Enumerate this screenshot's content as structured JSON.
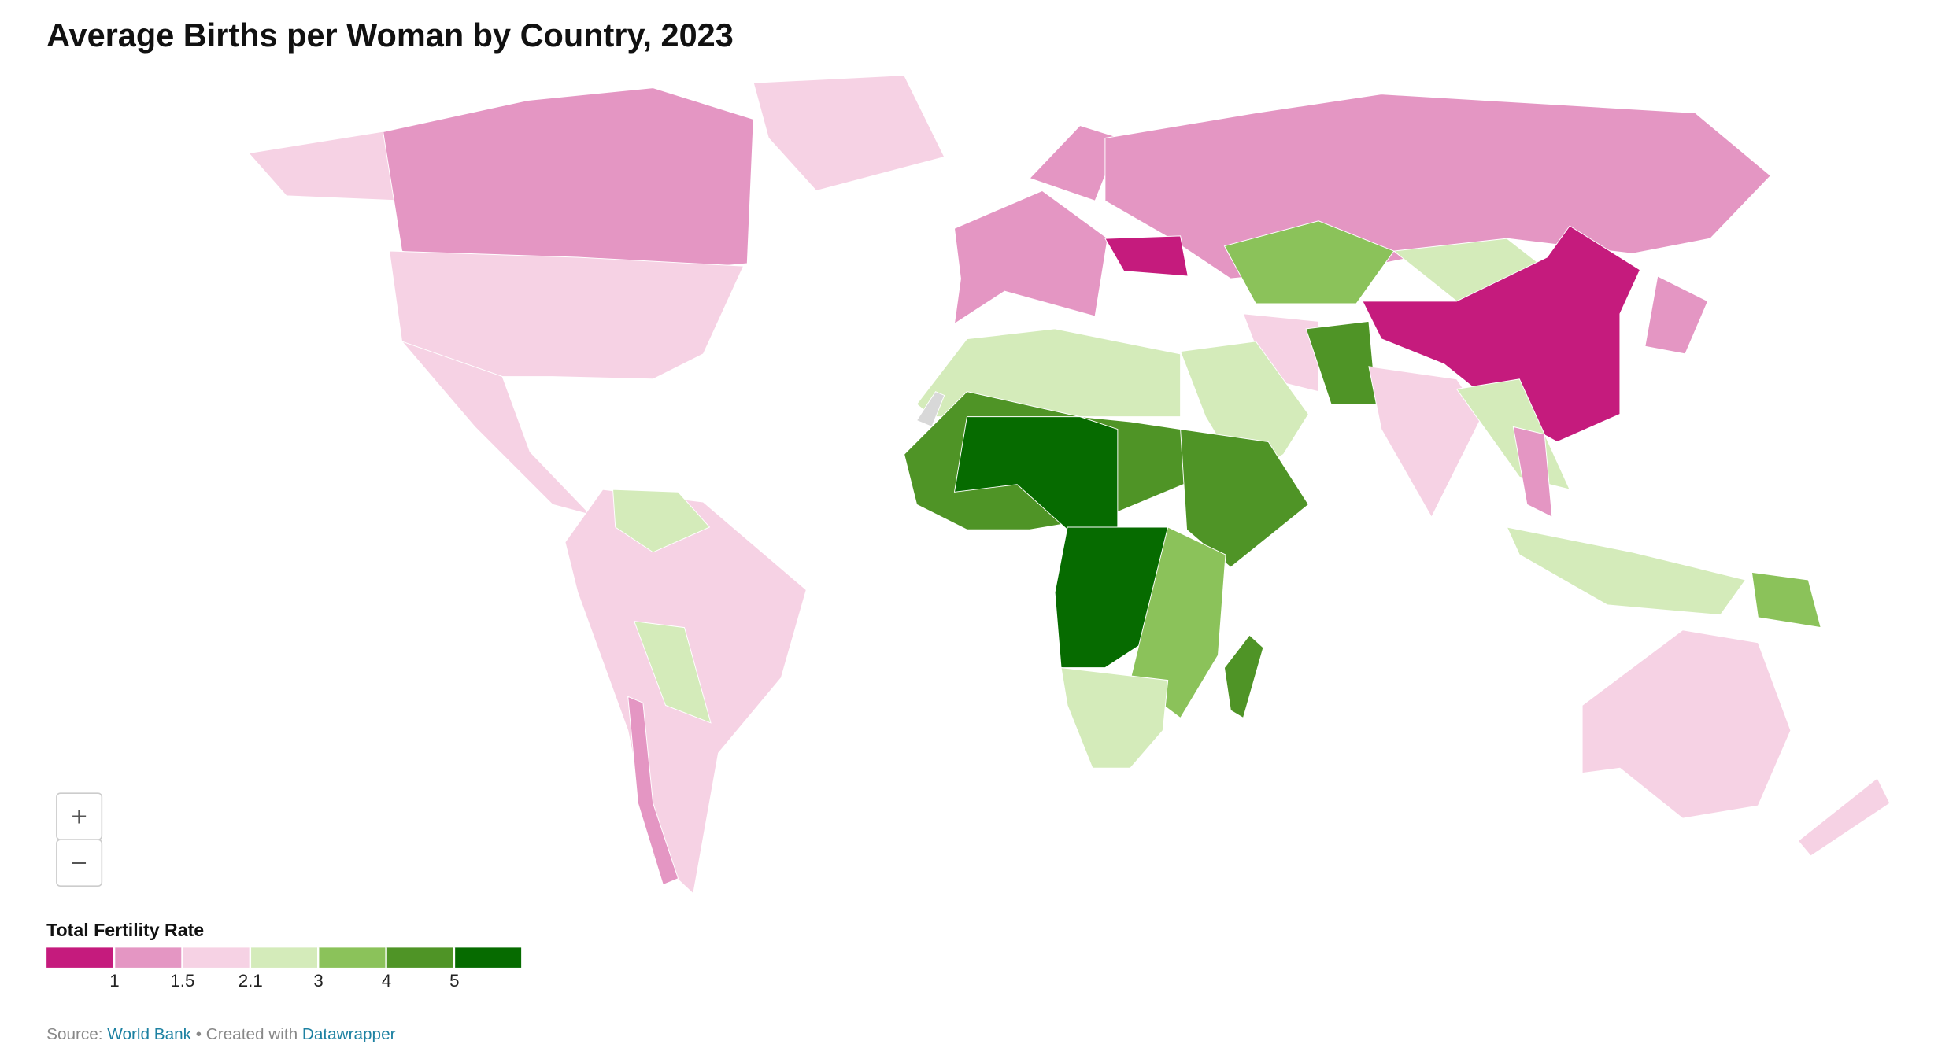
{
  "title": "Average Births per Woman by Country, 2023",
  "zoom": {
    "in": "+",
    "out": "−"
  },
  "legend": {
    "title": "Total Fertility Rate",
    "colors": [
      "#c51b7d",
      "#e496c3",
      "#f6d2e4",
      "#d4ebba",
      "#8bc25a",
      "#4f9426",
      "#066b00"
    ],
    "ticks": [
      1,
      1.5,
      2.1,
      3,
      4,
      5
    ]
  },
  "source": {
    "label": "Source:",
    "source_name": "World Bank",
    "created_with": "• Created with",
    "tool": "Datawrapper"
  }
}
